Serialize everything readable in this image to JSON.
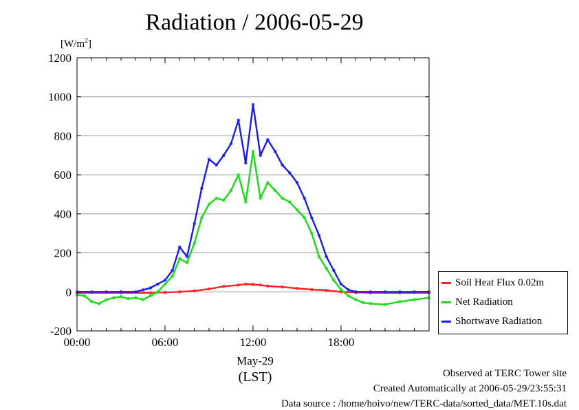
{
  "title": "Radiation / 2006-05-29",
  "unit_label": {
    "base": "[W/m",
    "sup": "2",
    "close": "]"
  },
  "date_label": "May-29",
  "lst_label": "(LST)",
  "footer": {
    "line1": "Observed at TERC Tower site",
    "line2": "Created Automatically at 2006-05-29/23:55:31",
    "line3": "Data source : /home/hoivo/new/TERC-data/sorted_data/MET.10s.dat"
  },
  "chart_data": {
    "type": "line",
    "title": "Radiation / 2006-05-29",
    "ylabel": "[W/m2]",
    "xlabel": "(LST)",
    "xlim": [
      0,
      24
    ],
    "ylim": [
      -200,
      1200
    ],
    "yticks": [
      -200,
      0,
      200,
      400,
      600,
      800,
      1000,
      1200
    ],
    "xticks": [
      {
        "value": 0,
        "label": "00:00"
      },
      {
        "value": 6,
        "label": "06:00"
      },
      {
        "value": 12,
        "label": "12:00"
      },
      {
        "value": 18,
        "label": "18:00"
      }
    ],
    "grid": true,
    "legend_position": "right",
    "series": [
      {
        "name": "Soil Heat Flux 0.02m",
        "color": "#ff2020",
        "x": [
          0,
          3,
          5,
          6,
          7,
          8,
          9,
          10,
          11,
          11.5,
          12,
          12.5,
          13,
          14,
          15,
          16,
          17,
          18,
          19,
          20,
          22,
          24
        ],
        "y": [
          -5,
          -5,
          -5,
          -3,
          0,
          5,
          15,
          28,
          35,
          40,
          38,
          35,
          30,
          25,
          18,
          12,
          8,
          0,
          -3,
          -5,
          -5,
          -5
        ]
      },
      {
        "name": "Net Radiation",
        "color": "#10e010",
        "x": [
          0,
          0.5,
          1,
          1.5,
          2,
          2.5,
          3,
          3.5,
          4,
          4.5,
          5,
          5.5,
          6,
          6.5,
          7,
          7.5,
          8,
          8.5,
          9,
          9.5,
          10,
          10.5,
          11,
          11.5,
          12,
          12.5,
          13,
          13.5,
          14,
          14.5,
          15,
          15.5,
          16,
          16.5,
          17,
          17.5,
          18,
          18.5,
          19,
          19.5,
          20,
          21,
          22,
          23,
          24
        ],
        "y": [
          -15,
          -20,
          -50,
          -60,
          -40,
          -30,
          -25,
          -35,
          -30,
          -40,
          -20,
          0,
          40,
          80,
          170,
          150,
          250,
          380,
          450,
          480,
          470,
          520,
          600,
          460,
          720,
          480,
          560,
          520,
          480,
          460,
          420,
          380,
          300,
          180,
          120,
          60,
          10,
          -20,
          -40,
          -55,
          -60,
          -65,
          -50,
          -40,
          -30
        ]
      },
      {
        "name": "Shortwave Radiation",
        "color": "#1818ff",
        "x": [
          0,
          1,
          2,
          3,
          4,
          4.5,
          5,
          5.5,
          6,
          6.5,
          7,
          7.5,
          8,
          8.5,
          9,
          9.5,
          10,
          10.5,
          11,
          11.5,
          12,
          12.5,
          13,
          13.5,
          14,
          14.5,
          15,
          15.5,
          16,
          16.5,
          17,
          17.5,
          18,
          18.5,
          19,
          20,
          21,
          22,
          23,
          24
        ],
        "y": [
          0,
          0,
          0,
          0,
          0,
          10,
          20,
          40,
          60,
          110,
          230,
          180,
          350,
          530,
          680,
          650,
          700,
          760,
          880,
          660,
          960,
          700,
          780,
          720,
          650,
          610,
          560,
          480,
          380,
          290,
          180,
          110,
          40,
          10,
          0,
          0,
          0,
          0,
          0,
          0
        ]
      }
    ]
  }
}
